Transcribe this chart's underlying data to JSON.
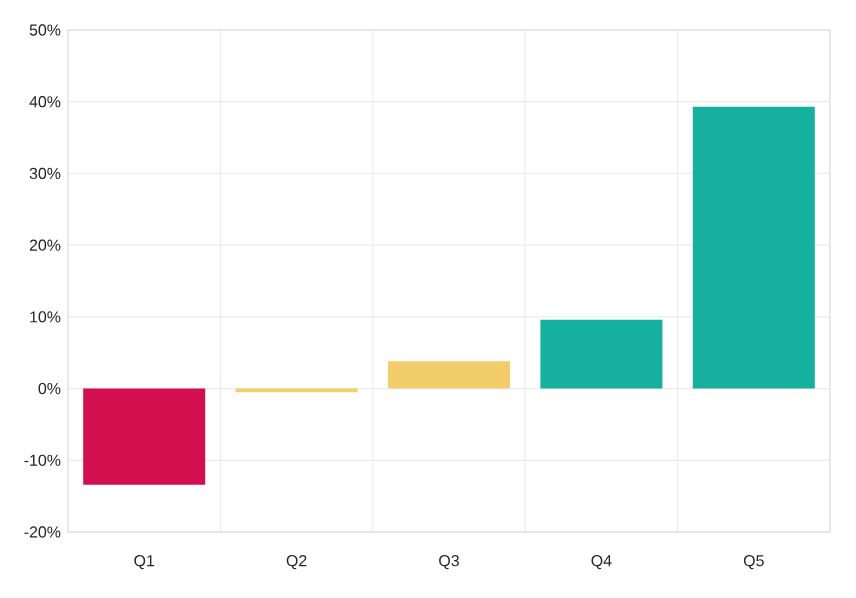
{
  "chart_data": {
    "type": "bar",
    "categories": [
      "Q1",
      "Q2",
      "Q3",
      "Q4",
      "Q5"
    ],
    "values": [
      -13.4,
      -0.5,
      3.8,
      9.6,
      39.3
    ],
    "colors": [
      "#d20f4f",
      "#f2cd6a",
      "#f2cd6a",
      "#16b09e",
      "#16b09e"
    ],
    "ylim": [
      -20,
      50
    ],
    "yticks": [
      {
        "value": -20,
        "label": "-20%"
      },
      {
        "value": -10,
        "label": "-10%"
      },
      {
        "value": 0,
        "label": "0%"
      },
      {
        "value": 10,
        "label": "10%"
      },
      {
        "value": 20,
        "label": "20%"
      },
      {
        "value": 30,
        "label": "30%"
      },
      {
        "value": 40,
        "label": "40%"
      },
      {
        "value": 50,
        "label": "50%"
      }
    ],
    "grid": true
  }
}
